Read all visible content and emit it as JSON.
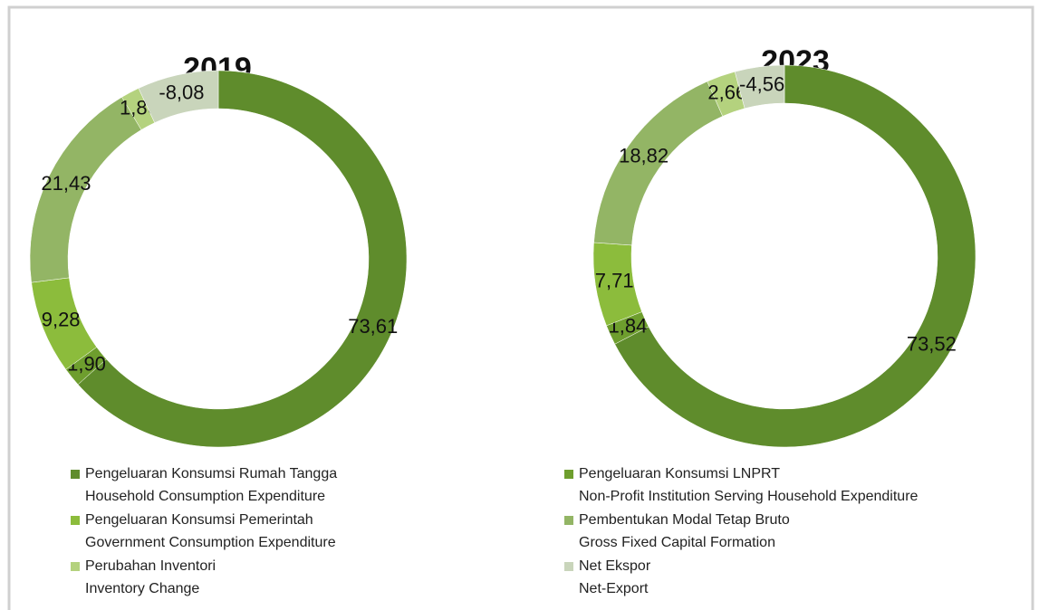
{
  "chart_data": [
    {
      "type": "pie",
      "title": "2019",
      "values": [
        73.61,
        1.9,
        9.28,
        21.43,
        1.86,
        -8.08
      ],
      "value_labels": [
        "73,61",
        "1,90",
        "9,28",
        "21,43",
        "1,86",
        "-8,08"
      ]
    },
    {
      "type": "pie",
      "title": "2023",
      "values": [
        73.52,
        1.84,
        7.71,
        18.82,
        2.66,
        -4.56
      ],
      "value_labels": [
        "73,52",
        "1,84",
        "7,71",
        "18,82",
        "2,66",
        "-4,56"
      ]
    }
  ],
  "legend": [
    {
      "label": "Pengeluaran Konsumsi Rumah Tangga",
      "label_en": "Household Consumption Expenditure",
      "color": "#5f8c2c"
    },
    {
      "label": "Pengeluaran Konsumsi LNPRT",
      "label_en": "Non-Profit Institution Serving Household Expenditure",
      "color": "#6e9e2e"
    },
    {
      "label": "Pengeluaran Konsumsi Pemerintah",
      "label_en": "Government Consumption Expenditure",
      "color": "#8cbc3c"
    },
    {
      "label": "Pembentukan Modal Tetap Bruto",
      "label_en": "Gross Fixed Capital Formation",
      "color": "#93b565"
    },
    {
      "label": "Perubahan Inventori",
      "label_en": "Inventory Change",
      "color": "#b4d27e"
    },
    {
      "label": "Net Ekspor",
      "label_en": "Net-Export",
      "color": "#c9d5bb"
    }
  ]
}
